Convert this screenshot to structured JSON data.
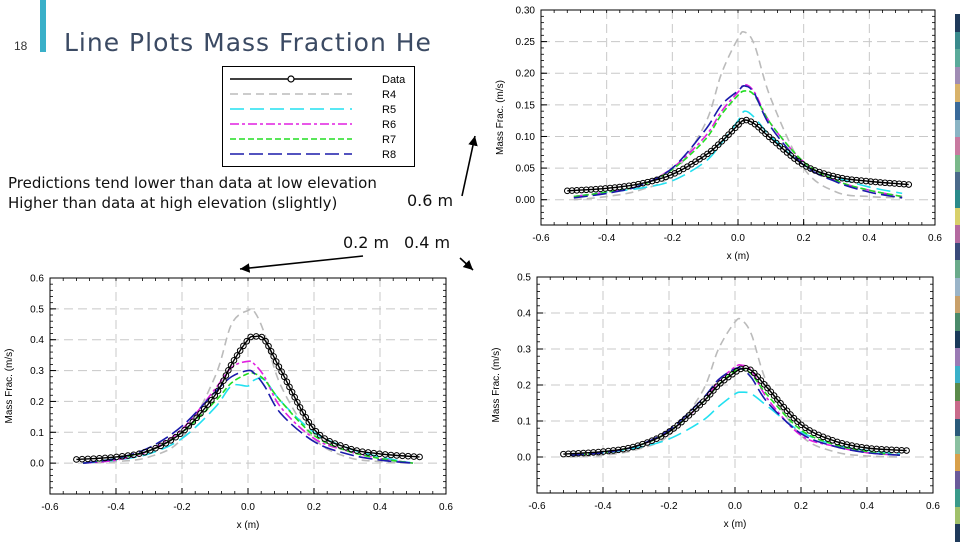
{
  "slide": {
    "number": "18",
    "title": "Line Plots Mass Fraction He",
    "notes": [
      "Predictions tend lower than data at low elevation",
      "Higher than data at high elevation (slightly)"
    ],
    "position_labels": [
      "0.6 m",
      "0.2 m",
      "0.4 m"
    ],
    "accent_color": "#3ab0c9",
    "title_color": "#3b4a63",
    "edge_colors": [
      "#1f3a5a",
      "#3a8a8c",
      "#5aaa9a",
      "#a08cb4",
      "#d8b26a",
      "#3a6a9a",
      "#8ab4c4",
      "#c87aa0",
      "#7ab88a",
      "#4a6a8a",
      "#2a8a8a",
      "#d8d06a",
      "#b46aa0",
      "#3a4a7a",
      "#6aaa8a",
      "#9ab4c8",
      "#c8a06a",
      "#4a8a6a",
      "#1a3a5a",
      "#9a7ab4",
      "#3ab0c9",
      "#5a8a4a",
      "#c86a8a",
      "#2a5a7a",
      "#8ac0a0",
      "#d8a04a",
      "#6a5a9a",
      "#3a9a8a",
      "#a0c06a",
      "#1f3a5a"
    ]
  },
  "legend": {
    "items": [
      {
        "name": "Data",
        "color": "#000000",
        "dash": "solid",
        "marker": "circle"
      },
      {
        "name": "R4",
        "color": "#bbbbbb",
        "dash": "8,5"
      },
      {
        "name": "R5",
        "color": "#22e0f0",
        "dash": "14,6"
      },
      {
        "name": "R6",
        "color": "#e020e0",
        "dash": "9,3,3,3"
      },
      {
        "name": "R7",
        "color": "#22dd22",
        "dash": "6,3"
      },
      {
        "name": "R8",
        "color": "#1a1aaa",
        "dash": "14,5"
      }
    ]
  },
  "chart_data": [
    {
      "type": "line",
      "panel": "0.6 m",
      "xlabel": "x (m)",
      "ylabel": "Mass Frac. (m/s)",
      "xlim": [
        -0.6,
        0.6
      ],
      "ylim": [
        -0.04,
        0.3
      ],
      "xticks": [
        -0.6,
        -0.4,
        -0.2,
        0.0,
        0.2,
        0.4,
        0.6
      ],
      "yticks": [
        0.0,
        0.05,
        0.1,
        0.15,
        0.2,
        0.25,
        0.3
      ],
      "ytick_labels": [
        "0.00",
        "0.05",
        "0.10",
        "0.15",
        "0.20",
        "0.25",
        "0.30"
      ],
      "grid": true,
      "series": [
        {
          "name": "Data",
          "x": [
            -0.52,
            -0.4,
            -0.3,
            -0.2,
            -0.1,
            -0.05,
            0.0,
            0.02,
            0.05,
            0.1,
            0.2,
            0.3,
            0.4,
            0.52
          ],
          "values": [
            0.014,
            0.018,
            0.025,
            0.04,
            0.07,
            0.092,
            0.118,
            0.126,
            0.12,
            0.097,
            0.055,
            0.036,
            0.029,
            0.024
          ]
        },
        {
          "name": "R4",
          "x": [
            -0.5,
            -0.4,
            -0.3,
            -0.2,
            -0.1,
            -0.05,
            0.0,
            0.02,
            0.05,
            0.1,
            0.2,
            0.3,
            0.4,
            0.5
          ],
          "values": [
            0.0,
            0.005,
            0.015,
            0.04,
            0.12,
            0.2,
            0.255,
            0.265,
            0.245,
            0.16,
            0.05,
            0.012,
            0.005,
            0.003
          ]
        },
        {
          "name": "R5",
          "x": [
            -0.5,
            -0.4,
            -0.3,
            -0.2,
            -0.1,
            -0.05,
            0.0,
            0.02,
            0.05,
            0.1,
            0.2,
            0.3,
            0.4,
            0.5
          ],
          "values": [
            0.005,
            0.012,
            0.018,
            0.03,
            0.06,
            0.09,
            0.125,
            0.14,
            0.13,
            0.1,
            0.055,
            0.035,
            0.02,
            0.01
          ]
        },
        {
          "name": "R6",
          "x": [
            -0.5,
            -0.4,
            -0.3,
            -0.2,
            -0.1,
            -0.05,
            0.0,
            0.02,
            0.05,
            0.1,
            0.2,
            0.3,
            0.4,
            0.5
          ],
          "values": [
            0.005,
            0.012,
            0.022,
            0.05,
            0.1,
            0.14,
            0.17,
            0.182,
            0.17,
            0.12,
            0.06,
            0.03,
            0.015,
            0.005
          ]
        },
        {
          "name": "R7",
          "x": [
            -0.5,
            -0.4,
            -0.3,
            -0.2,
            -0.1,
            -0.05,
            0.0,
            0.02,
            0.05,
            0.1,
            0.2,
            0.3,
            0.4,
            0.5
          ],
          "values": [
            0.005,
            0.012,
            0.022,
            0.048,
            0.095,
            0.135,
            0.165,
            0.172,
            0.165,
            0.12,
            0.06,
            0.03,
            0.015,
            0.005
          ]
        },
        {
          "name": "R8",
          "x": [
            -0.5,
            -0.4,
            -0.3,
            -0.2,
            -0.1,
            -0.05,
            0.0,
            0.02,
            0.05,
            0.1,
            0.2,
            0.3,
            0.4,
            0.5
          ],
          "values": [
            0.003,
            0.01,
            0.022,
            0.05,
            0.11,
            0.15,
            0.172,
            0.18,
            0.168,
            0.115,
            0.055,
            0.028,
            0.012,
            0.003
          ]
        }
      ]
    },
    {
      "type": "line",
      "panel": "0.2 m",
      "xlabel": "x (m)",
      "ylabel": "Mass Frac. (m/s)",
      "xlim": [
        -0.6,
        0.6
      ],
      "ylim": [
        -0.1,
        0.6
      ],
      "xticks": [
        -0.6,
        -0.4,
        -0.2,
        0.0,
        0.2,
        0.4,
        0.6
      ],
      "yticks": [
        0.0,
        0.1,
        0.2,
        0.3,
        0.4,
        0.5,
        0.6
      ],
      "ytick_labels": [
        "0.0",
        "0.1",
        "0.2",
        "0.3",
        "0.4",
        "0.5",
        "0.6"
      ],
      "grid": true,
      "series": [
        {
          "name": "Data",
          "x": [
            -0.52,
            -0.4,
            -0.3,
            -0.2,
            -0.1,
            -0.05,
            0.0,
            0.02,
            0.05,
            0.1,
            0.2,
            0.3,
            0.4,
            0.52
          ],
          "values": [
            0.012,
            0.02,
            0.04,
            0.1,
            0.22,
            0.32,
            0.4,
            0.41,
            0.4,
            0.3,
            0.11,
            0.05,
            0.03,
            0.02
          ]
        },
        {
          "name": "R4",
          "x": [
            -0.5,
            -0.4,
            -0.3,
            -0.2,
            -0.1,
            -0.05,
            0.0,
            0.02,
            0.05,
            0.1,
            0.2,
            0.3,
            0.4,
            0.5
          ],
          "values": [
            0.0,
            0.005,
            0.02,
            0.08,
            0.28,
            0.45,
            0.495,
            0.49,
            0.42,
            0.25,
            0.08,
            0.02,
            0.005,
            0.0
          ]
        },
        {
          "name": "R5",
          "x": [
            -0.5,
            -0.4,
            -0.3,
            -0.2,
            -0.1,
            -0.05,
            0.0,
            0.02,
            0.05,
            0.1,
            0.2,
            0.3,
            0.4,
            0.5
          ],
          "values": [
            0.0,
            0.01,
            0.03,
            0.08,
            0.18,
            0.25,
            0.25,
            0.27,
            0.27,
            0.2,
            0.1,
            0.05,
            0.02,
            0.0
          ]
        },
        {
          "name": "R6",
          "x": [
            -0.5,
            -0.4,
            -0.3,
            -0.2,
            -0.1,
            -0.05,
            0.0,
            0.02,
            0.05,
            0.1,
            0.2,
            0.3,
            0.4,
            0.5
          ],
          "values": [
            0.0,
            0.01,
            0.04,
            0.11,
            0.24,
            0.31,
            0.33,
            0.32,
            0.28,
            0.18,
            0.08,
            0.04,
            0.015,
            0.0
          ]
        },
        {
          "name": "R7",
          "x": [
            -0.5,
            -0.4,
            -0.3,
            -0.2,
            -0.1,
            -0.05,
            0.0,
            0.02,
            0.05,
            0.1,
            0.2,
            0.3,
            0.4,
            0.5
          ],
          "values": [
            0.0,
            0.015,
            0.04,
            0.1,
            0.2,
            0.26,
            0.29,
            0.29,
            0.27,
            0.2,
            0.09,
            0.04,
            0.015,
            0.0
          ]
        },
        {
          "name": "R8",
          "x": [
            -0.5,
            -0.4,
            -0.3,
            -0.2,
            -0.1,
            -0.05,
            0.0,
            0.02,
            0.05,
            0.1,
            0.2,
            0.3,
            0.4,
            0.5
          ],
          "values": [
            0.0,
            0.015,
            0.05,
            0.12,
            0.23,
            0.28,
            0.3,
            0.29,
            0.25,
            0.16,
            0.07,
            0.03,
            0.01,
            0.0
          ]
        }
      ]
    },
    {
      "type": "line",
      "panel": "0.4 m",
      "xlabel": "x (m)",
      "ylabel": "Mass Frac. (m/s)",
      "xlim": [
        -0.6,
        0.6
      ],
      "ylim": [
        -0.1,
        0.5
      ],
      "xticks": [
        -0.6,
        -0.4,
        -0.2,
        0.0,
        0.2,
        0.4,
        0.6
      ],
      "yticks": [
        0.0,
        0.1,
        0.2,
        0.3,
        0.4,
        0.5
      ],
      "ytick_labels": [
        "0.0",
        "0.1",
        "0.2",
        "0.3",
        "0.4",
        "0.5"
      ],
      "grid": true,
      "series": [
        {
          "name": "Data",
          "x": [
            -0.52,
            -0.4,
            -0.3,
            -0.2,
            -0.1,
            -0.05,
            0.0,
            0.02,
            0.05,
            0.1,
            0.2,
            0.3,
            0.4,
            0.52
          ],
          "values": [
            0.008,
            0.015,
            0.03,
            0.07,
            0.15,
            0.2,
            0.235,
            0.245,
            0.24,
            0.19,
            0.09,
            0.045,
            0.025,
            0.018
          ]
        },
        {
          "name": "R4",
          "x": [
            -0.5,
            -0.4,
            -0.3,
            -0.2,
            -0.1,
            -0.05,
            0.0,
            0.02,
            0.05,
            0.1,
            0.2,
            0.3,
            0.4,
            0.5
          ],
          "values": [
            0.0,
            0.005,
            0.02,
            0.06,
            0.18,
            0.3,
            0.375,
            0.38,
            0.34,
            0.2,
            0.06,
            0.015,
            0.003,
            0.0
          ]
        },
        {
          "name": "R5",
          "x": [
            -0.5,
            -0.4,
            -0.3,
            -0.2,
            -0.1,
            -0.05,
            0.0,
            0.02,
            0.05,
            0.1,
            0.2,
            0.3,
            0.4,
            0.5
          ],
          "values": [
            0.005,
            0.012,
            0.025,
            0.05,
            0.1,
            0.14,
            0.175,
            0.18,
            0.175,
            0.14,
            0.07,
            0.035,
            0.018,
            0.008
          ]
        },
        {
          "name": "R6",
          "x": [
            -0.5,
            -0.4,
            -0.3,
            -0.2,
            -0.1,
            -0.05,
            0.0,
            0.02,
            0.05,
            0.1,
            0.2,
            0.3,
            0.4,
            0.5
          ],
          "values": [
            0.005,
            0.012,
            0.03,
            0.07,
            0.15,
            0.21,
            0.25,
            0.255,
            0.24,
            0.16,
            0.06,
            0.03,
            0.012,
            0.005
          ]
        },
        {
          "name": "R7",
          "x": [
            -0.5,
            -0.4,
            -0.3,
            -0.2,
            -0.1,
            -0.05,
            0.0,
            0.02,
            0.05,
            0.1,
            0.2,
            0.3,
            0.4,
            0.5
          ],
          "values": [
            0.005,
            0.012,
            0.03,
            0.07,
            0.15,
            0.2,
            0.24,
            0.245,
            0.23,
            0.17,
            0.075,
            0.035,
            0.015,
            0.005
          ]
        },
        {
          "name": "R8",
          "x": [
            -0.5,
            -0.4,
            -0.3,
            -0.2,
            -0.1,
            -0.05,
            0.0,
            0.02,
            0.05,
            0.1,
            0.2,
            0.3,
            0.4,
            0.5
          ],
          "values": [
            0.005,
            0.012,
            0.03,
            0.075,
            0.16,
            0.215,
            0.245,
            0.245,
            0.22,
            0.15,
            0.065,
            0.03,
            0.012,
            0.005
          ]
        }
      ]
    }
  ]
}
